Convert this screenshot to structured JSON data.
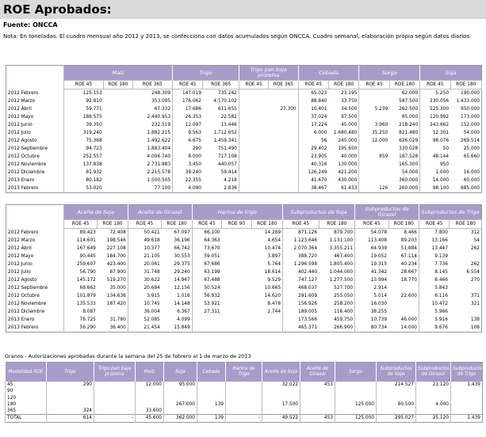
{
  "header": {
    "title": "ROE Aprobados:",
    "source": "Fuente: ONCCA",
    "note": "Nota: En toneladas. El cuadro mensual año 2012 y 2013, se confecciona con datos acumulados según ONCCA. Cuadro semanal, elaboración propia según datos diarios."
  },
  "table1": {
    "groups": [
      {
        "name": "Maíz",
        "columns": [
          "ROE 45",
          "ROE 180",
          "ROE 365"
        ]
      },
      {
        "name": "Trigo",
        "columns": [
          "ROE 45",
          "ROE 365"
        ]
      },
      {
        "name": "Trigo pan baja proteína",
        "columns": [
          "ROE 45",
          "ROE 365"
        ]
      },
      {
        "name": "Cebada",
        "columns": [
          "ROE 45",
          "ROE 180"
        ]
      },
      {
        "name": "Sorgo",
        "columns": [
          "ROE 45",
          "ROE 180"
        ]
      },
      {
        "name": "Soja",
        "columns": [
          "ROE 45",
          "ROE 180"
        ]
      }
    ],
    "rows": [
      {
        "label": "2012 Febrero",
        "values": [
          "125.153",
          null,
          "248.309",
          "147.019",
          "735.242",
          null,
          null,
          "65.023",
          "23.195",
          null,
          "62.000",
          "5.250",
          "190.000"
        ]
      },
      {
        "label": "2012 Marzo",
        "values": [
          "92.810",
          null,
          "353.095",
          "176.062",
          "4.170.102",
          null,
          null,
          "88.840",
          "33.750",
          null,
          "587.500",
          "230.056",
          "1.433.000"
        ]
      },
      {
        "label": "2012 Abril",
        "values": [
          "59.771",
          null,
          "67.332",
          "17.686",
          "611.655",
          null,
          "27.300",
          "10.401",
          "34.500",
          "5.239",
          "262.500",
          "525.300",
          "950.000"
        ]
      },
      {
        "label": "2012 Mayo",
        "values": [
          "188.575",
          null,
          "2.440.953",
          "26.353",
          "22.582",
          null,
          null,
          "37.024",
          "97.500",
          null,
          "85.000",
          "120.992",
          "173.000"
        ]
      },
      {
        "label": "2012 Junio",
        "values": [
          "39.350",
          null,
          "232.519",
          "12.097",
          "13.446",
          null,
          null,
          "17.224",
          "45.000",
          "3.960",
          "218.240",
          "243.662",
          "152.000"
        ]
      },
      {
        "label": "2012 Julio",
        "values": [
          "319.240",
          null,
          "1.882.215",
          "9.563",
          "1.712.652",
          null,
          null,
          "6.000",
          "1.680.480",
          "35.250",
          "821.480",
          "12.301",
          "54.000"
        ]
      },
      {
        "label": "2012 Agosto",
        "values": [
          "75.368",
          null,
          "1.492.622",
          "6.675",
          "1.459.341",
          null,
          null,
          "56",
          "245.000",
          "12.000",
          "626.029",
          "98.076",
          "269.514"
        ]
      },
      {
        "label": "2012 Septiembre",
        "values": [
          "94.723",
          null,
          "1.883.404",
          "290",
          "751.490",
          null,
          null,
          "29.402",
          "195.650",
          null,
          "330.028",
          "50",
          "25.000"
        ]
      },
      {
        "label": "2012 Octubre",
        "values": [
          "252.557",
          null,
          "4.006.740",
          "8.000",
          "717.108",
          null,
          null,
          "23.905",
          "40.000",
          "859",
          "187.528",
          "48.144",
          "65.660"
        ]
      },
      {
        "label": "2012 Noviembre",
        "values": [
          "137.838",
          null,
          "2.731.883",
          "3.450",
          "440.057",
          null,
          null,
          "40.316",
          "130.000",
          null,
          "165.300",
          "950",
          null
        ]
      },
      {
        "label": "2012 Diciembre",
        "values": [
          "81.932",
          null,
          "2.215.578",
          "39.240",
          "59.414",
          null,
          null,
          "126.249",
          "421.200",
          null,
          "54.000",
          "1.000",
          "16.000"
        ]
      },
      {
        "label": "2013 Enero",
        "values": [
          "80.182",
          null,
          "1.500.505",
          "22.355",
          "4.218",
          null,
          null,
          "41.670",
          "430.000",
          null,
          "360.000",
          "14.000",
          "60.000"
        ]
      },
      {
        "label": "2013 Febrero",
        "values": [
          "53.020",
          null,
          "77.100",
          "4.090",
          "2.836",
          null,
          null,
          "38.467",
          "61.433",
          "126",
          "260.000",
          "98.100",
          "685.000"
        ]
      }
    ]
  },
  "table2": {
    "groups": [
      {
        "name": "Aceite de Soja",
        "columns": [
          "ROE 45",
          "ROE 180"
        ]
      },
      {
        "name": "Aceite de Girasol",
        "columns": [
          "ROE 45",
          "ROE 180"
        ]
      },
      {
        "name": "Harina de trigo",
        "columns": [
          "ROE 45",
          "ROE 90",
          "ROE 180"
        ]
      },
      {
        "name": "Subproductos de Soja",
        "columns": [
          "ROE 45",
          "ROE 180"
        ]
      },
      {
        "name": "Subproductos de Girasol",
        "columns": [
          "ROE 45",
          "ROE 180"
        ]
      },
      {
        "name": "Subproductos de Trigo",
        "columns": [
          "ROE 45",
          "ROE 180"
        ]
      }
    ],
    "rows": [
      {
        "label": "2012 Febrero",
        "values": [
          "89.423",
          "72.408",
          "50.421",
          "67.097",
          "66.100",
          null,
          "14.289",
          "871.126",
          "879.700",
          "54.078",
          "8.466",
          "7.800",
          "312"
        ]
      },
      {
        "label": "2012 Marzo",
        "values": [
          "114.601",
          "198.546",
          "49.618",
          "36.196",
          "64.363",
          null,
          "4.654",
          "1.123.646",
          "1.131.100",
          "113.408",
          "89.203",
          "13.166",
          "54"
        ]
      },
      {
        "label": "2012 Abril",
        "values": [
          "167.649",
          "227.108",
          "10.377",
          "66.742",
          "73.670",
          null,
          "10.474",
          "2.070.364",
          "3.355.211",
          "64.939",
          "51.884",
          "13.447",
          "262"
        ]
      },
      {
        "label": "2012 Mayo",
        "values": [
          "90.445",
          "184.700",
          "21.105",
          "30.553",
          "59.051",
          null,
          "3.897",
          "388.720",
          "467.400",
          "19.052",
          "67.114",
          "9.139",
          null
        ]
      },
      {
        "label": "2012 Junio",
        "values": [
          "259.607",
          "423.400",
          "20.061",
          "29.375",
          "67.686",
          null,
          "5.764",
          "1.296.598",
          "1.805.400",
          "19.315",
          "40.234",
          "7.736",
          "262"
        ]
      },
      {
        "label": "2012 Julio",
        "values": [
          "56.790",
          "87.900",
          "31.748",
          "29.240",
          "63.199",
          null,
          "18.614",
          "402.440",
          "1.044.000",
          "41.342",
          "28.667",
          "8.145",
          "6.554"
        ]
      },
      {
        "label": "2012 Agosto",
        "values": [
          "145.172",
          "519.270",
          "30.622",
          "14.947",
          "67.488",
          null,
          "9.529",
          "747.127",
          "1.277.500",
          "13.994",
          "18.770",
          "8.466",
          "270"
        ]
      },
      {
        "label": "2012 Septiembre",
        "values": [
          "68.662",
          "35.000",
          "20.684",
          "12.156",
          "50.524",
          null,
          "10.665",
          "468.037",
          "527.700",
          "2.914",
          null,
          "5.843",
          null
        ]
      },
      {
        "label": "2012 Octubre",
        "values": [
          "101.879",
          "134.636",
          "3.915",
          "1.016",
          "56.932",
          null,
          "14.620",
          "291.609",
          "255.050",
          "5.014",
          "22.600",
          "6.116",
          "371"
        ]
      },
      {
        "label": "2012 Noviembre",
        "values": [
          "135.533",
          "187.420",
          "10.745",
          "14.148",
          "53.921",
          null,
          "8.478",
          "156.926",
          "258.200",
          "16.030",
          null,
          "10.472",
          "321"
        ]
      },
      {
        "label": "2012 Diciembre",
        "values": [
          "8.087",
          null,
          "36.004",
          "6.367",
          "27.311",
          null,
          "2.744",
          "189.005",
          "116.400",
          "38.255",
          null,
          "5.966",
          null
        ]
      },
      {
        "label": "2013 Enero",
        "values": [
          "76.725",
          "31.780",
          "52.085",
          "4.099",
          null,
          null,
          null,
          "173.566",
          "459.750",
          "10.739",
          "46.000",
          "5.916",
          "138"
        ]
      },
      {
        "label": "2013 Febrero",
        "values": [
          "56.290",
          "36.400",
          "21.454",
          "15.849",
          null,
          null,
          null,
          "465.371",
          "266.900",
          "80.734",
          "14.000",
          "9.676",
          "108"
        ]
      }
    ]
  },
  "weekly": {
    "title": "Granos - Autorizaciones aprobadas durante la semana del 25 de febrero al 1  de marzo de 2013",
    "headers": [
      "Modalidad ROE",
      "Trigo",
      "Trigo pan baja proteína",
      "Maíz",
      "Soja",
      "Cebada",
      "Harina de Trigo",
      "Aceite de Soja",
      "Aceite de Girasol",
      "Sorgo",
      "Subproductos de Soja",
      "Subproductos de Girasol",
      "Subproductos de Trigo"
    ],
    "rows": [
      {
        "label": "45",
        "values": [
          "290",
          null,
          "12.000",
          "95.000",
          null,
          null,
          "32.022",
          "453",
          null,
          "214.527",
          "21.120",
          "1.439"
        ]
      },
      {
        "label": "90",
        "values": [
          null,
          null,
          null,
          null,
          null,
          null,
          null,
          null,
          null,
          null,
          null,
          null
        ]
      },
      {
        "label": "120",
        "values": [
          null,
          null,
          null,
          null,
          null,
          null,
          null,
          null,
          null,
          null,
          null,
          null
        ]
      },
      {
        "label": "180",
        "values": [
          null,
          null,
          null,
          "267.000",
          "139",
          null,
          "17.500",
          null,
          "125.000",
          "80.500",
          "4.000",
          null
        ]
      },
      {
        "label": "365",
        "values": [
          "324",
          null,
          "33.600",
          null,
          null,
          null,
          null,
          null,
          null,
          null,
          null,
          null
        ]
      },
      {
        "label": "TOTAL",
        "values": [
          "614",
          "-",
          "45.600",
          "362.000",
          "139",
          "-",
          "49.522",
          "453",
          "125.000",
          "295.027",
          "25.120",
          "1.439"
        ]
      }
    ]
  }
}
